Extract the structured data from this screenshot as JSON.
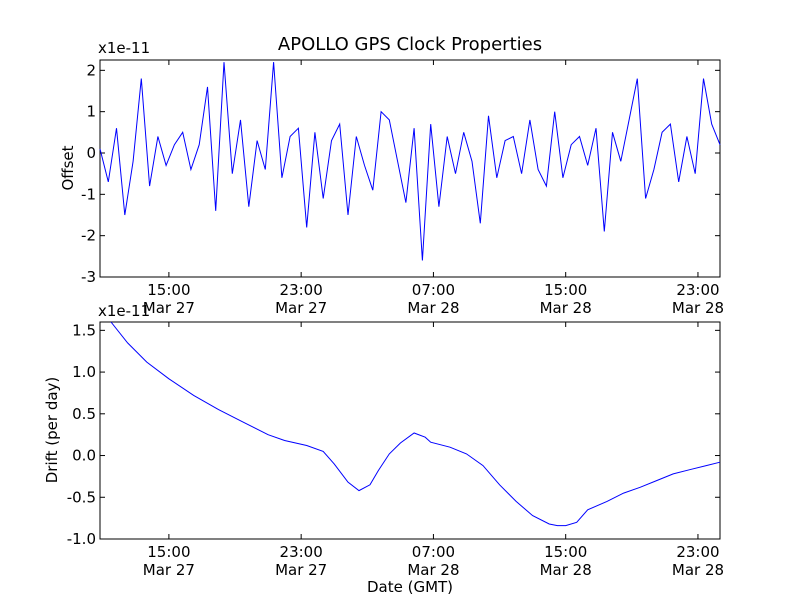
{
  "figure": {
    "title": "APOLLO GPS Clock Properties",
    "trace_color": "#0000ff",
    "axes_color": "#000000",
    "background": "#ffffff"
  },
  "chart_data": [
    {
      "type": "line",
      "name": "offset-panel",
      "title": "APOLLO GPS Clock Properties",
      "ylabel": "Offset",
      "xlabel": "",
      "y_multiplier": "x1e-11",
      "xlim": [
        "2013-03-27 10:50",
        "2013-03-29 00:20"
      ],
      "ylim": [
        -3,
        2.25
      ],
      "yticks": [
        -3,
        -2,
        -1,
        0,
        1,
        2
      ],
      "xticks": [
        {
          "time": "2013-03-27 15:00",
          "line1": "15:00",
          "line2": "Mar 27"
        },
        {
          "time": "2013-03-27 23:00",
          "line1": "23:00",
          "line2": "Mar 27"
        },
        {
          "time": "2013-03-28 07:00",
          "line1": "07:00",
          "line2": "Mar 28"
        },
        {
          "time": "2013-03-28 15:00",
          "line1": "15:00",
          "line2": "Mar 28"
        },
        {
          "time": "2013-03-28 23:00",
          "line1": "23:00",
          "line2": "Mar 28"
        }
      ],
      "series": [
        {
          "color": "#0000ff",
          "x": [
            "2013-03-27 10:50",
            "2013-03-27 11:20",
            "2013-03-27 11:50",
            "2013-03-27 12:20",
            "2013-03-27 12:50",
            "2013-03-27 13:20",
            "2013-03-27 13:50",
            "2013-03-27 14:20",
            "2013-03-27 14:50",
            "2013-03-27 15:20",
            "2013-03-27 15:50",
            "2013-03-27 16:20",
            "2013-03-27 16:50",
            "2013-03-27 17:20",
            "2013-03-27 17:50",
            "2013-03-27 18:20",
            "2013-03-27 18:50",
            "2013-03-27 19:20",
            "2013-03-27 19:50",
            "2013-03-27 20:20",
            "2013-03-27 20:50",
            "2013-03-27 21:20",
            "2013-03-27 21:50",
            "2013-03-27 22:20",
            "2013-03-27 22:50",
            "2013-03-27 23:20",
            "2013-03-27 23:50",
            "2013-03-28 00:20",
            "2013-03-28 00:50",
            "2013-03-28 01:20",
            "2013-03-28 01:50",
            "2013-03-28 02:20",
            "2013-03-28 02:50",
            "2013-03-28 03:20",
            "2013-03-28 03:50",
            "2013-03-28 04:20",
            "2013-03-28 04:50",
            "2013-03-28 05:20",
            "2013-03-28 05:50",
            "2013-03-28 06:20",
            "2013-03-28 06:50",
            "2013-03-28 07:20",
            "2013-03-28 07:50",
            "2013-03-28 08:20",
            "2013-03-28 08:50",
            "2013-03-28 09:20",
            "2013-03-28 09:50",
            "2013-03-28 10:20",
            "2013-03-28 10:50",
            "2013-03-28 11:20",
            "2013-03-28 11:50",
            "2013-03-28 12:20",
            "2013-03-28 12:50",
            "2013-03-28 13:20",
            "2013-03-28 13:50",
            "2013-03-28 14:20",
            "2013-03-28 14:50",
            "2013-03-28 15:20",
            "2013-03-28 15:50",
            "2013-03-28 16:20",
            "2013-03-28 16:50",
            "2013-03-28 17:20",
            "2013-03-28 17:50",
            "2013-03-28 18:20",
            "2013-03-28 18:50",
            "2013-03-28 19:20",
            "2013-03-28 19:50",
            "2013-03-28 20:20",
            "2013-03-28 20:50",
            "2013-03-28 21:20",
            "2013-03-28 21:50",
            "2013-03-28 22:20",
            "2013-03-28 22:50",
            "2013-03-28 23:20",
            "2013-03-28 23:50",
            "2013-03-29 00:20"
          ],
          "y": [
            0.1,
            -0.7,
            0.6,
            -1.5,
            -0.2,
            1.8,
            -0.8,
            0.4,
            -0.3,
            0.2,
            0.5,
            -0.4,
            0.2,
            1.6,
            -1.4,
            2.2,
            -0.5,
            0.8,
            -1.3,
            0.3,
            -0.4,
            2.2,
            -0.6,
            0.4,
            0.6,
            -1.8,
            0.5,
            -1.1,
            0.3,
            0.7,
            -1.5,
            0.4,
            -0.3,
            -0.9,
            1.0,
            0.8,
            -0.2,
            -1.2,
            0.6,
            -2.6,
            0.7,
            -1.3,
            0.4,
            -0.5,
            0.5,
            -0.2,
            -1.7,
            0.9,
            -0.6,
            0.3,
            0.4,
            -0.5,
            0.8,
            -0.4,
            -0.8,
            1.0,
            -0.6,
            0.2,
            0.4,
            -0.3,
            0.6,
            -1.9,
            0.5,
            -0.2,
            0.8,
            1.8,
            -1.1,
            -0.4,
            0.5,
            0.7,
            -0.7,
            0.4,
            -0.5,
            1.8,
            0.7,
            0.2
          ]
        }
      ]
    },
    {
      "type": "line",
      "name": "drift-panel",
      "title": "",
      "ylabel": "Drift (per day)",
      "xlabel": "Date (GMT)",
      "y_multiplier": "x1e-11",
      "xlim": [
        "2013-03-27 10:50",
        "2013-03-29 00:20"
      ],
      "ylim": [
        -1.0,
        1.6
      ],
      "yticks": [
        -1.0,
        -0.5,
        0.0,
        0.5,
        1.0,
        1.5
      ],
      "ytick_labels": [
        "-1.0",
        "-0.5",
        "0.0",
        "0.5",
        "1.0",
        "1.5"
      ],
      "xticks": [
        {
          "time": "2013-03-27 15:00",
          "line1": "15:00",
          "line2": "Mar 27"
        },
        {
          "time": "2013-03-27 23:00",
          "line1": "23:00",
          "line2": "Mar 27"
        },
        {
          "time": "2013-03-28 07:00",
          "line1": "07:00",
          "line2": "Mar 28"
        },
        {
          "time": "2013-03-28 15:00",
          "line1": "15:00",
          "line2": "Mar 28"
        },
        {
          "time": "2013-03-28 23:00",
          "line1": "23:00",
          "line2": "Mar 28"
        }
      ],
      "series": [
        {
          "color": "#0000ff",
          "x": [
            "2013-03-27 11:30",
            "2013-03-27 12:30",
            "2013-03-27 13:40",
            "2013-03-27 15:00",
            "2013-03-27 16:30",
            "2013-03-27 18:00",
            "2013-03-27 19:30",
            "2013-03-27 21:00",
            "2013-03-27 22:00",
            "2013-03-27 23:20",
            "2013-03-28 00:20",
            "2013-03-28 01:00",
            "2013-03-28 01:50",
            "2013-03-28 02:30",
            "2013-03-28 03:10",
            "2013-03-28 03:40",
            "2013-03-28 04:20",
            "2013-03-28 05:00",
            "2013-03-28 05:50",
            "2013-03-28 06:30",
            "2013-03-28 06:50",
            "2013-03-28 08:00",
            "2013-03-28 09:00",
            "2013-03-28 10:00",
            "2013-03-28 11:00",
            "2013-03-28 12:00",
            "2013-03-28 13:00",
            "2013-03-28 14:00",
            "2013-03-28 14:30",
            "2013-03-28 15:00",
            "2013-03-28 15:40",
            "2013-03-28 16:20",
            "2013-03-28 17:30",
            "2013-03-28 18:30",
            "2013-03-28 19:30",
            "2013-03-28 20:30",
            "2013-03-28 21:30",
            "2013-03-28 22:30",
            "2013-03-28 23:30",
            "2013-03-29 00:20"
          ],
          "y": [
            1.6,
            1.35,
            1.12,
            0.92,
            0.72,
            0.55,
            0.4,
            0.25,
            0.18,
            0.12,
            0.05,
            -0.1,
            -0.32,
            -0.42,
            -0.35,
            -0.18,
            0.02,
            0.15,
            0.27,
            0.22,
            0.16,
            0.1,
            0.02,
            -0.12,
            -0.35,
            -0.55,
            -0.72,
            -0.82,
            -0.84,
            -0.84,
            -0.8,
            -0.65,
            -0.55,
            -0.45,
            -0.38,
            -0.3,
            -0.22,
            -0.17,
            -0.12,
            -0.08
          ]
        }
      ]
    }
  ]
}
